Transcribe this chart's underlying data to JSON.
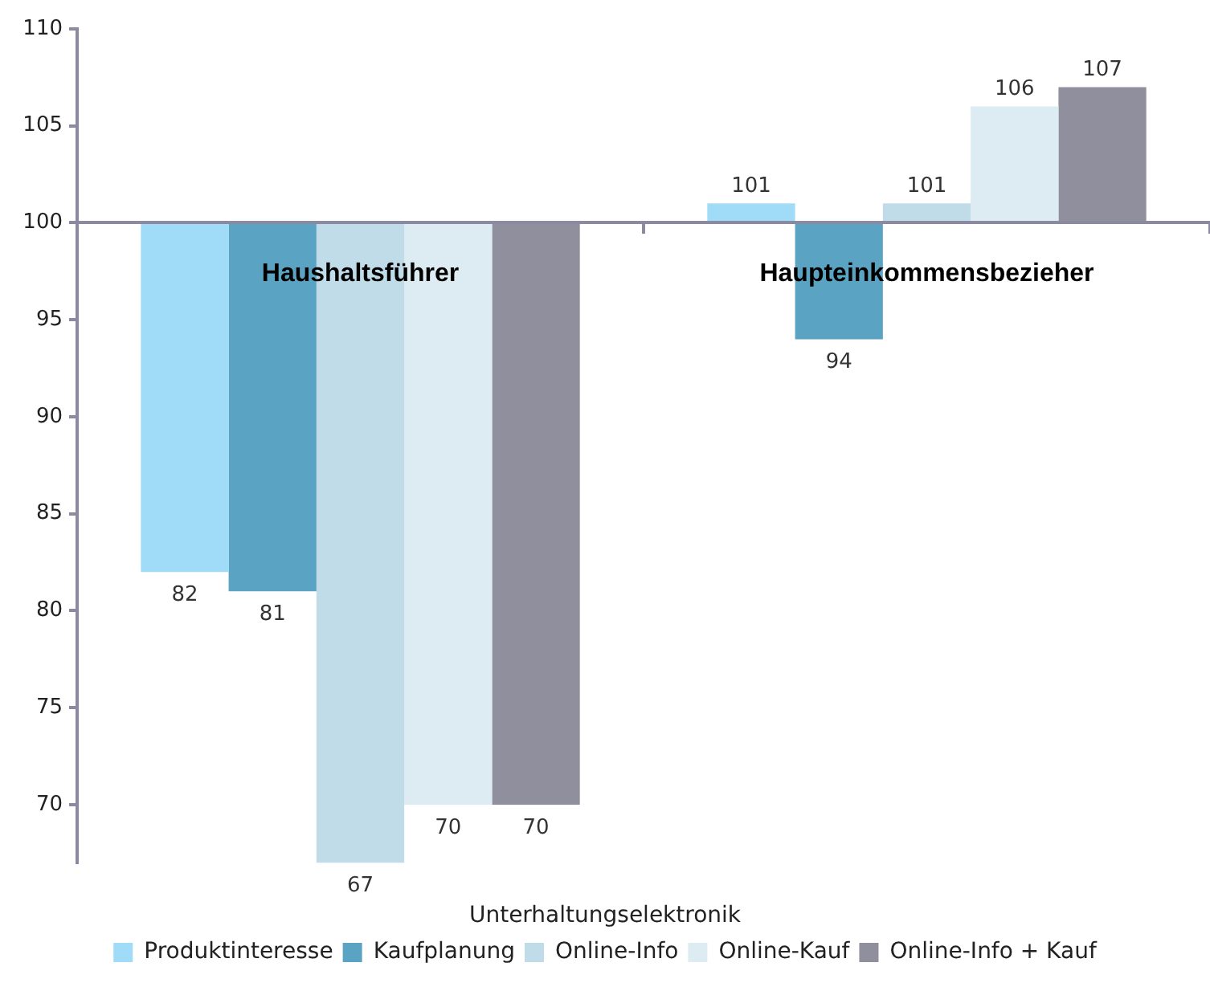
{
  "chart_data": {
    "type": "bar",
    "categories": [
      "Haushaltsführer",
      "Haupteinkommensbezieher"
    ],
    "xlabel": "Unterhaltungselektronik",
    "series": [
      {
        "name": "Produktinteresse",
        "color": "#a0dcf8",
        "base": [
          100,
          100
        ],
        "values": [
          -18,
          1
        ],
        "value_labels": [
          "82",
          "101"
        ]
      },
      {
        "name": "Kaufplanung",
        "color": "#5ba3c3",
        "base": [
          100,
          100
        ],
        "values": [
          -19,
          -6
        ],
        "value_labels": [
          "81",
          "94"
        ]
      },
      {
        "name": "Online-Info",
        "color": "#c0dce8",
        "base": [
          100,
          100
        ],
        "values": [
          -33,
          1
        ],
        "value_labels": [
          "67",
          "101"
        ]
      },
      {
        "name": "Online-Kauf",
        "color": "#ddebf3",
        "base": [
          100,
          100
        ],
        "values": [
          -30,
          6
        ],
        "value_labels": [
          "70",
          "106"
        ]
      },
      {
        "name": "Online-Info + Kauf",
        "color": "#908f9d",
        "base": [
          100,
          100
        ],
        "values": [
          -30,
          7
        ],
        "value_labels": [
          "70",
          "107"
        ]
      }
    ],
    "ylim": [
      67,
      110
    ],
    "yticks": [
      70,
      75,
      80,
      85,
      90,
      95,
      100,
      105,
      110
    ],
    "legend": "bottom"
  }
}
